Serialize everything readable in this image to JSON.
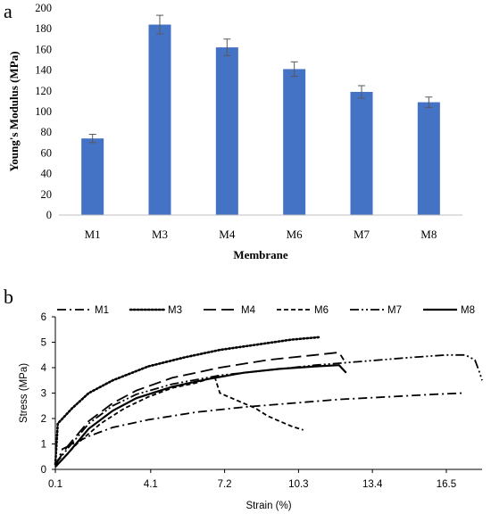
{
  "panels": {
    "a": "a",
    "b": "b"
  },
  "chart_data": [
    {
      "type": "bar",
      "categories": [
        "M1",
        "M3",
        "M4",
        "M6",
        "M7",
        "M8"
      ],
      "values": [
        74,
        184,
        162,
        141,
        119,
        109
      ],
      "error": [
        4,
        9,
        8,
        7,
        6,
        5
      ],
      "xlabel": "Membrane",
      "ylabel": "Young's Modulus (MPa)",
      "ylim": [
        0,
        200
      ],
      "yticks": [
        0,
        20,
        40,
        60,
        80,
        100,
        120,
        140,
        160,
        180,
        200
      ],
      "grid": false,
      "bar_color": "#4472c4",
      "error_color": "#595959"
    },
    {
      "type": "line",
      "xlabel": "Strain (%)",
      "ylabel": "Stress (MPa)",
      "xlim": [
        0.1,
        18.0
      ],
      "ylim": [
        0,
        6
      ],
      "xticks": [
        "0.1",
        "4.1",
        "7.2",
        "10.3",
        "13.4",
        "16.5"
      ],
      "xtick_values": [
        0.1,
        4.1,
        7.2,
        10.3,
        13.4,
        16.5
      ],
      "yticks": [
        0,
        1,
        2,
        3,
        4,
        5,
        6
      ],
      "legend_position": "top",
      "grid": false,
      "series": [
        {
          "name": "M1",
          "dash": "dashdot",
          "points": [
            [
              0.1,
              0.1
            ],
            [
              0.4,
              0.8
            ],
            [
              1.5,
              1.3
            ],
            [
              2.5,
              1.65
            ],
            [
              4.0,
              1.95
            ],
            [
              6.0,
              2.25
            ],
            [
              8.0,
              2.45
            ],
            [
              10.0,
              2.6
            ],
            [
              12.0,
              2.75
            ],
            [
              14.0,
              2.85
            ],
            [
              16.0,
              2.95
            ],
            [
              17.2,
              3.0
            ]
          ]
        },
        {
          "name": "M3",
          "dash": "dotted",
          "points": [
            [
              0.1,
              0.2
            ],
            [
              0.2,
              1.8
            ],
            [
              0.8,
              2.4
            ],
            [
              1.5,
              3.0
            ],
            [
              2.5,
              3.5
            ],
            [
              4.0,
              4.05
            ],
            [
              5.5,
              4.4
            ],
            [
              7.0,
              4.7
            ],
            [
              8.5,
              4.9
            ],
            [
              10.0,
              5.1
            ],
            [
              11.2,
              5.2
            ]
          ]
        },
        {
          "name": "M4",
          "dash": "longdash",
          "points": [
            [
              0.1,
              0.2
            ],
            [
              0.6,
              0.9
            ],
            [
              1.5,
              1.9
            ],
            [
              2.5,
              2.6
            ],
            [
              3.5,
              3.1
            ],
            [
              5.0,
              3.6
            ],
            [
              7.0,
              4.0
            ],
            [
              9.0,
              4.3
            ],
            [
              11.0,
              4.5
            ],
            [
              12.0,
              4.6
            ],
            [
              12.2,
              4.3
            ]
          ]
        },
        {
          "name": "M6",
          "dash": "dashed",
          "points": [
            [
              0.1,
              0.1
            ],
            [
              1.0,
              1.0
            ],
            [
              2.0,
              1.8
            ],
            [
              3.0,
              2.4
            ],
            [
              4.0,
              2.85
            ],
            [
              5.0,
              3.2
            ],
            [
              6.0,
              3.4
            ],
            [
              6.5,
              3.55
            ],
            [
              6.8,
              3.6
            ],
            [
              7.0,
              3.0
            ],
            [
              7.5,
              2.8
            ],
            [
              8.0,
              2.6
            ],
            [
              8.5,
              2.4
            ],
            [
              9.0,
              2.1
            ],
            [
              9.5,
              1.9
            ],
            [
              10.0,
              1.7
            ],
            [
              10.5,
              1.55
            ]
          ]
        },
        {
          "name": "M7",
          "dash": "dashdotdot",
          "points": [
            [
              0.1,
              0.2
            ],
            [
              0.6,
              0.8
            ],
            [
              1.5,
              1.8
            ],
            [
              2.5,
              2.5
            ],
            [
              3.5,
              2.95
            ],
            [
              5.0,
              3.35
            ],
            [
              7.0,
              3.7
            ],
            [
              9.0,
              3.9
            ],
            [
              11.0,
              4.1
            ],
            [
              13.0,
              4.25
            ],
            [
              15.0,
              4.4
            ],
            [
              16.5,
              4.5
            ],
            [
              17.3,
              4.5
            ],
            [
              17.7,
              4.3
            ],
            [
              17.9,
              3.8
            ],
            [
              18.0,
              3.5
            ]
          ]
        },
        {
          "name": "M8",
          "dash": "solid",
          "points": [
            [
              0.1,
              0.1
            ],
            [
              0.6,
              0.6
            ],
            [
              1.5,
              1.6
            ],
            [
              2.5,
              2.3
            ],
            [
              3.5,
              2.8
            ],
            [
              5.0,
              3.25
            ],
            [
              6.5,
              3.55
            ],
            [
              8.0,
              3.8
            ],
            [
              9.5,
              3.95
            ],
            [
              11.0,
              4.05
            ],
            [
              12.0,
              4.1
            ],
            [
              12.3,
              3.8
            ]
          ]
        }
      ]
    }
  ]
}
